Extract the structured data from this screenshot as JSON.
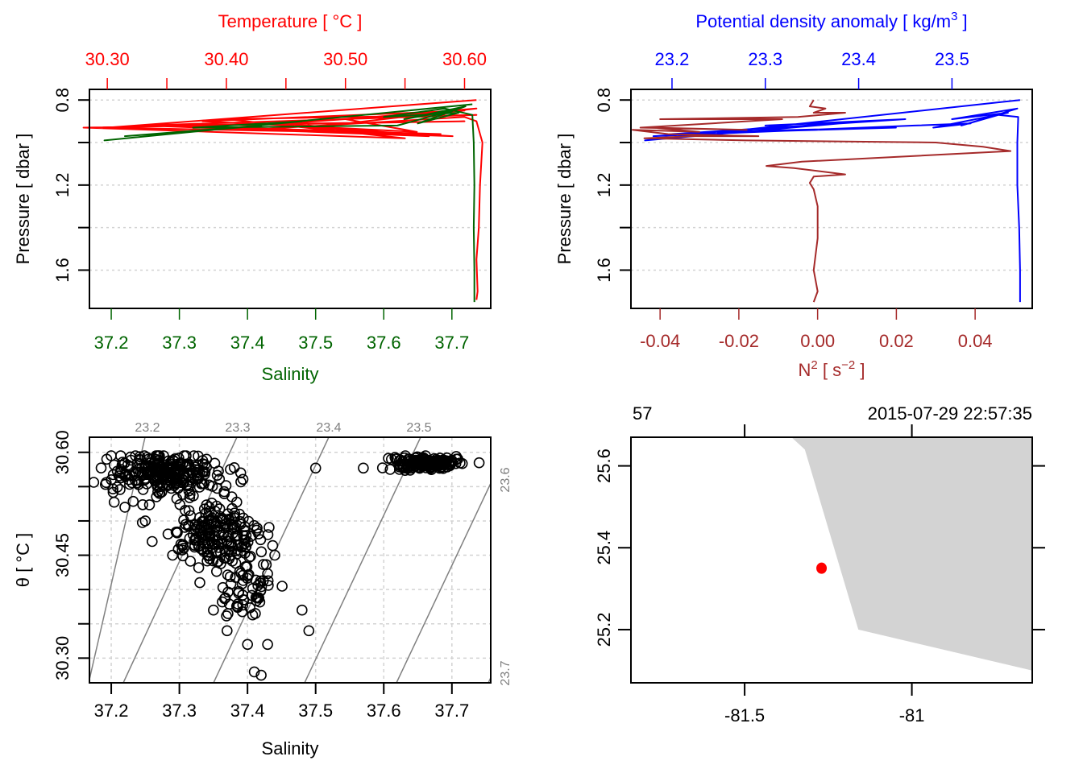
{
  "chart_data": [
    {
      "id": "profile-ts",
      "type": "line",
      "top_axis": {
        "label": "Temperature [ °C ]",
        "color": "#ff0000",
        "range": [
          30.285,
          30.622
        ],
        "ticks": [
          30.3,
          30.35,
          30.4,
          30.45,
          30.5,
          30.55,
          30.6
        ],
        "tick_labels": [
          "30.30",
          "",
          "30.40",
          "",
          "30.50",
          "",
          "30.60"
        ]
      },
      "bottom_axis": {
        "label": "Salinity",
        "color": "#006400",
        "range": [
          37.168,
          37.757
        ],
        "ticks": [
          37.2,
          37.3,
          37.4,
          37.5,
          37.6,
          37.7
        ],
        "tick_labels": [
          "37.2",
          "37.3",
          "37.4",
          "37.5",
          "37.6",
          "37.7"
        ]
      },
      "y_axis": {
        "label": "Pressure [ dbar ]",
        "range": [
          0.75,
          1.78
        ],
        "reversed": true,
        "ticks": [
          0.8,
          1.0,
          1.2,
          1.4,
          1.6
        ],
        "tick_labels": [
          "0.8",
          "",
          "1.2",
          "",
          "1.6"
        ]
      },
      "grid": true,
      "series": [
        {
          "name": "Temperature",
          "color": "#ff0000",
          "axis": "top",
          "points": [
            [
              30.61,
              0.8
            ],
            [
              30.3,
              0.93
            ],
            [
              30.58,
              0.96
            ],
            [
              30.35,
              0.92
            ],
            [
              30.6,
              0.9
            ],
            [
              30.28,
              0.93
            ],
            [
              30.55,
              0.98
            ],
            [
              30.4,
              0.89
            ],
            [
              30.61,
              0.87
            ],
            [
              30.33,
              0.92
            ],
            [
              30.57,
              0.97
            ],
            [
              30.45,
              0.91
            ],
            [
              30.6,
              0.85
            ],
            [
              30.38,
              0.9
            ],
            [
              30.56,
              0.95
            ],
            [
              30.5,
              0.89
            ],
            [
              30.61,
              0.84
            ],
            [
              30.47,
              0.93
            ],
            [
              30.59,
              0.97
            ],
            [
              30.42,
              0.94
            ],
            [
              30.6,
              0.88
            ],
            [
              30.61,
              0.9
            ],
            [
              30.615,
              1.0
            ],
            [
              30.613,
              1.2
            ],
            [
              30.612,
              1.4
            ],
            [
              30.61,
              1.55
            ],
            [
              30.611,
              1.7
            ],
            [
              30.61,
              1.74
            ]
          ]
        },
        {
          "name": "Salinity",
          "color": "#006400",
          "axis": "bottom",
          "points": [
            [
              37.73,
              0.82
            ],
            [
              37.19,
              0.99
            ],
            [
              37.35,
              0.94
            ],
            [
              37.22,
              0.97
            ],
            [
              37.42,
              0.92
            ],
            [
              37.28,
              0.96
            ],
            [
              37.48,
              0.9
            ],
            [
              37.32,
              0.93
            ],
            [
              37.62,
              0.92
            ],
            [
              37.7,
              0.85
            ],
            [
              37.63,
              0.89
            ],
            [
              37.72,
              0.83
            ],
            [
              37.65,
              0.91
            ],
            [
              37.71,
              0.86
            ],
            [
              37.6,
              0.88
            ],
            [
              37.69,
              0.84
            ],
            [
              37.73,
              0.87
            ],
            [
              37.732,
              1.0
            ],
            [
              37.733,
              1.2
            ],
            [
              37.732,
              1.4
            ],
            [
              37.733,
              1.6
            ],
            [
              37.733,
              1.75
            ]
          ]
        }
      ]
    },
    {
      "id": "profile-density-n2",
      "type": "line",
      "top_axis": {
        "label": "Potential density anomaly [ kg/m³ ]",
        "label_main": "Potential density anomaly [ kg/m",
        "label_sup": "3",
        "label_end": " ]",
        "color": "#0000ff",
        "range": [
          23.156,
          23.586
        ],
        "ticks": [
          23.2,
          23.3,
          23.4,
          23.5
        ],
        "tick_labels": [
          "23.2",
          "23.3",
          "23.4",
          "23.5"
        ]
      },
      "bottom_axis": {
        "label": "N² [ s⁻² ]",
        "label_main": "N",
        "label_sup": "2",
        "label_mid": " [ s",
        "label_sup2": "−2",
        "label_end": " ]",
        "color": "#a52a2a",
        "range": [
          -0.0474,
          0.0545
        ],
        "ticks": [
          -0.04,
          -0.02,
          0.0,
          0.02,
          0.04
        ],
        "tick_labels": [
          "-0.04",
          "-0.02",
          "0.00",
          "0.02",
          "0.04"
        ]
      },
      "y_axis": {
        "label": "Pressure [ dbar ]",
        "range": [
          0.75,
          1.78
        ],
        "reversed": true,
        "ticks": [
          0.8,
          1.0,
          1.2,
          1.4,
          1.6
        ],
        "tick_labels": [
          "0.8",
          "",
          "1.2",
          "",
          "1.6"
        ]
      },
      "grid": true,
      "series": [
        {
          "name": "Potential density anomaly",
          "color": "#0000ff",
          "axis": "top",
          "points": [
            [
              23.573,
              0.8
            ],
            [
              23.171,
              0.99
            ],
            [
              23.38,
              0.91
            ],
            [
              23.2,
              0.96
            ],
            [
              23.44,
              0.93
            ],
            [
              23.24,
              0.95
            ],
            [
              23.45,
              0.89
            ],
            [
              23.3,
              0.92
            ],
            [
              23.41,
              0.9
            ],
            [
              23.18,
              0.97
            ],
            [
              23.46,
              0.92
            ],
            [
              23.52,
              0.91
            ],
            [
              23.48,
              0.93
            ],
            [
              23.56,
              0.86
            ],
            [
              23.5,
              0.89
            ],
            [
              23.57,
              0.84
            ],
            [
              23.51,
              0.92
            ],
            [
              23.55,
              0.87
            ],
            [
              23.571,
              0.88
            ],
            [
              23.57,
              1.0
            ],
            [
              23.57,
              1.2
            ],
            [
              23.572,
              1.4
            ],
            [
              23.573,
              1.6
            ],
            [
              23.573,
              1.75
            ]
          ]
        },
        {
          "name": "N2",
          "color": "#a52a2a",
          "axis": "bottom",
          "points": [
            [
              -0.001,
              0.8
            ],
            [
              -0.002,
              0.83
            ],
            [
              0.002,
              0.84
            ],
            [
              -0.001,
              0.86
            ],
            [
              0.007,
              0.86
            ],
            [
              -0.005,
              0.88
            ],
            [
              -0.04,
              0.89
            ],
            [
              -0.009,
              0.89
            ],
            [
              -0.045,
              0.93
            ],
            [
              -0.018,
              0.94
            ],
            [
              -0.042,
              0.93
            ],
            [
              -0.03,
              0.95
            ],
            [
              -0.047,
              0.94
            ],
            [
              -0.038,
              0.96
            ],
            [
              -0.015,
              0.97
            ],
            [
              -0.032,
              0.97
            ],
            [
              -0.044,
              0.98
            ],
            [
              -0.018,
              0.99
            ],
            [
              0.03,
              1.0
            ],
            [
              0.042,
              1.02
            ],
            [
              0.049,
              1.04
            ],
            [
              -0.004,
              1.09
            ],
            [
              -0.013,
              1.11
            ],
            [
              -0.006,
              1.12
            ],
            [
              0.007,
              1.15
            ],
            [
              -0.001,
              1.16
            ],
            [
              -0.002,
              1.19
            ],
            [
              -0.001,
              1.22
            ],
            [
              0.0,
              1.3
            ],
            [
              0.0,
              1.45
            ],
            [
              -0.001,
              1.6
            ],
            [
              0.0,
              1.7
            ],
            [
              -0.001,
              1.75
            ]
          ]
        }
      ]
    },
    {
      "id": "ts-diagram",
      "type": "scatter",
      "xlabel": "Salinity",
      "ylabel": "θ [ °C ]",
      "x_range": [
        37.168,
        37.757
      ],
      "y_range": [
        30.264,
        30.622
      ],
      "x_ticks": [
        37.2,
        37.3,
        37.4,
        37.5,
        37.6,
        37.7
      ],
      "x_tick_labels": [
        "37.2",
        "37.3",
        "37.4",
        "37.5",
        "37.6",
        "37.7"
      ],
      "y_ticks": [
        30.3,
        30.35,
        30.4,
        30.45,
        30.5,
        30.55,
        30.6
      ],
      "y_tick_labels": [
        "30.30",
        "",
        "",
        "30.45",
        "",
        "",
        "30.60"
      ],
      "grid": true,
      "isopycnal_labels_top": [
        "23.2",
        "23.3",
        "23.4",
        "23.5"
      ],
      "isopycnal_labels_right": [
        "23.6",
        "23.7"
      ],
      "isopycnal_color": "#808080",
      "point_clusters": [
        {
          "center": [
            37.28,
            30.57
          ],
          "spread": [
            0.08,
            0.03
          ],
          "count": 260
        },
        {
          "center": [
            37.35,
            30.48
          ],
          "spread": [
            0.06,
            0.05
          ],
          "count": 200
        },
        {
          "center": [
            37.4,
            30.4
          ],
          "spread": [
            0.04,
            0.05
          ],
          "count": 60
        },
        {
          "center": [
            37.66,
            30.585
          ],
          "spread": [
            0.05,
            0.01
          ],
          "count": 160
        }
      ],
      "points_sample": [
        [
          37.2,
          30.56
        ],
        [
          37.22,
          30.52
        ],
        [
          37.25,
          30.5
        ],
        [
          37.26,
          30.47
        ],
        [
          37.29,
          30.45
        ],
        [
          37.33,
          30.41
        ],
        [
          37.35,
          30.37
        ],
        [
          37.37,
          30.34
        ],
        [
          37.4,
          30.32
        ],
        [
          37.41,
          30.28
        ],
        [
          37.42,
          30.275
        ],
        [
          37.49,
          30.34
        ],
        [
          37.48,
          30.37
        ],
        [
          37.44,
          30.45
        ],
        [
          37.5,
          30.577
        ],
        [
          37.57,
          30.577
        ],
        [
          37.43,
          30.48
        ],
        [
          37.31,
          30.58
        ],
        [
          37.34,
          30.59
        ],
        [
          37.39,
          30.57
        ]
      ]
    },
    {
      "id": "station-map",
      "type": "map",
      "x_range": [
        -81.84,
        -80.64
      ],
      "y_range": [
        25.07,
        25.67
      ],
      "x_ticks": [
        -81.5,
        -81
      ],
      "x_tick_labels": [
        "-81.5",
        "-81"
      ],
      "y_ticks": [
        25.2,
        25.4,
        25.6
      ],
      "y_tick_labels": [
        "25.2",
        "25.4",
        "25.6"
      ],
      "top_left_label": "57",
      "top_right_label": "2015-07-29 22:57:35",
      "station": {
        "lon": -81.27,
        "lat": 25.35,
        "color": "#ff0000"
      },
      "land_color": "#d3d3d3",
      "coastline": [
        [
          -81.36,
          25.67
        ],
        [
          -81.32,
          25.64
        ],
        [
          -81.16,
          25.2
        ],
        [
          -80.64,
          25.1
        ],
        [
          -80.64,
          25.67
        ]
      ]
    }
  ]
}
